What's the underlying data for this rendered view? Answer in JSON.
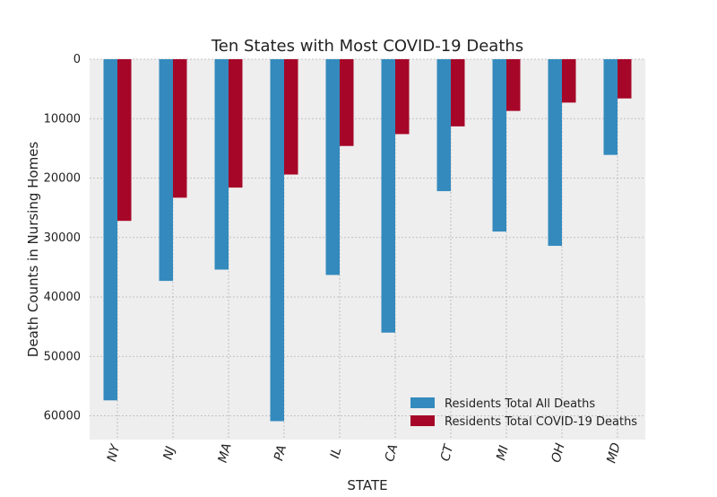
{
  "chart_data": {
    "type": "bar",
    "title": "Ten States with Most COVID-19 Deaths",
    "xlabel": "STATE",
    "ylabel": "Death Counts in Nursing Homes",
    "categories": [
      "NY",
      "NJ",
      "MA",
      "PA",
      "IL",
      "CA",
      "CT",
      "MI",
      "OH",
      "MD"
    ],
    "series": [
      {
        "name": "Residents Total All Deaths",
        "color": "#348abd",
        "values": [
          57400,
          37300,
          35400,
          60900,
          36300,
          46000,
          22200,
          29000,
          31400,
          16100
        ]
      },
      {
        "name": "Residents Total COVID-19 Deaths",
        "color": "#a60628",
        "values": [
          27200,
          23300,
          21600,
          19400,
          14600,
          12600,
          11300,
          8700,
          7300,
          6600
        ]
      }
    ],
    "y_inverted": true,
    "ylim": [
      0,
      64000
    ],
    "yticks": [
      0,
      10000,
      20000,
      30000,
      40000,
      50000,
      60000
    ],
    "ytick_labels": [
      "0",
      "10000",
      "20000",
      "30000",
      "40000",
      "50000",
      "60000"
    ],
    "grid": true,
    "legend_position": "lower-right",
    "plot_background": "#eeeeee"
  }
}
